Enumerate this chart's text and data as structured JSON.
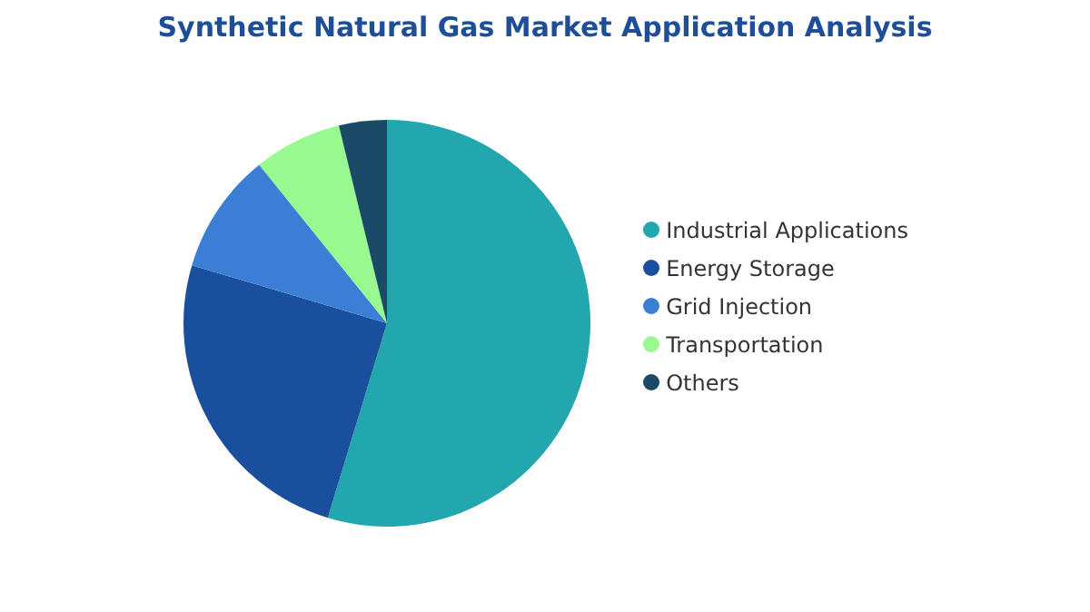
{
  "chart_data": {
    "type": "pie",
    "title": "Synthetic Natural Gas Market Application Analysis",
    "categories": [
      "Industrial Applications",
      "Energy Storage",
      "Grid Injection",
      "Transportation",
      "Others"
    ],
    "values": [
      54.7,
      24.9,
      9.6,
      7,
      3.8
    ],
    "colors": [
      "#21a7ad",
      "#1a4f9e",
      "#3a7fd5",
      "#98f990",
      "#1b4a66"
    ],
    "legend": "right"
  }
}
